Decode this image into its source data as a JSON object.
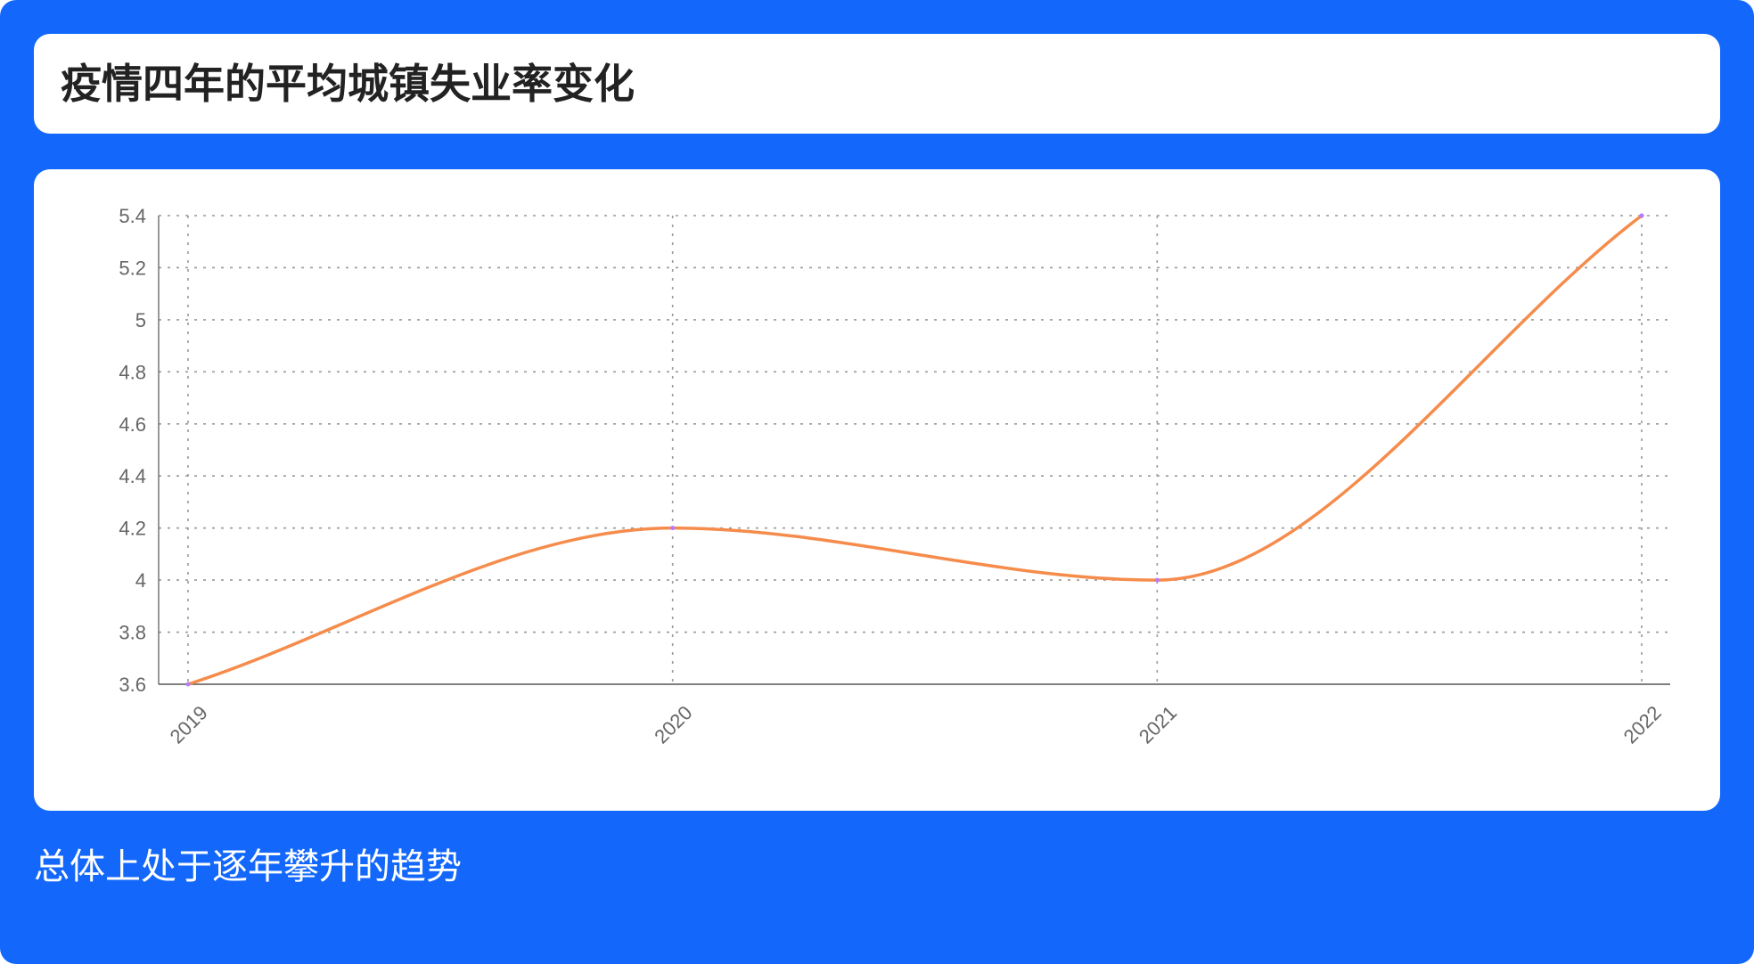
{
  "title": "疫情四年的平均城镇失业率变化",
  "caption": "总体上处于逐年攀升的趋势",
  "colors": {
    "background": "#1368fb",
    "card": "#ffffff",
    "line": "#f58c4c",
    "point": "#b57bff",
    "grid": "#999999",
    "axis": "#555555",
    "tick_text": "#666666"
  },
  "chart_data": {
    "type": "line",
    "categories": [
      "2019",
      "2020",
      "2021",
      "2022"
    ],
    "series": [
      {
        "values": [
          3.6,
          4.2,
          4.0,
          5.4
        ]
      }
    ],
    "y_ticks": [
      "3.6",
      "3.8",
      "4",
      "4.2",
      "4.4",
      "4.6",
      "4.8",
      "5",
      "5.2",
      "5.4"
    ],
    "ylim": [
      3.6,
      5.4
    ],
    "xlabel": "",
    "ylabel": "",
    "grid": true,
    "smooth": true,
    "legend": "none"
  }
}
